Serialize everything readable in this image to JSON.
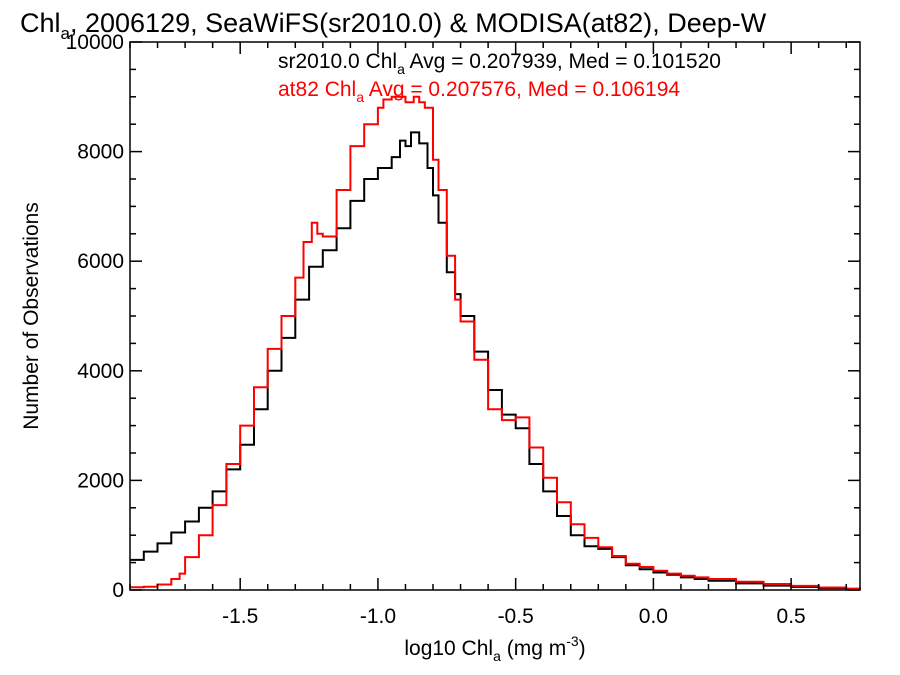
{
  "chart_data": {
    "type": "line",
    "title_pre": "Chl",
    "title_sub": "a",
    "title_post": ", 2006129, SeaWiFS(sr2010.0) & MODISA(at82), Deep-W",
    "xlabel_pre": "log10 Chl",
    "xlabel_sub": "a",
    "xlabel_post": " (mg m",
    "xlabel_sup": "-3",
    "xlabel_end": ")",
    "ylabel": "Number of Observations",
    "xlim": [
      -1.9,
      0.75
    ],
    "ylim": [
      0,
      10000
    ],
    "xticks": [
      -1.5,
      -1.0,
      -0.5,
      0.0,
      0.5
    ],
    "xtick_labels": [
      "-1.5",
      "-1.0",
      "-0.5",
      "0.0",
      "0.5"
    ],
    "yticks": [
      0,
      2000,
      4000,
      6000,
      8000,
      10000
    ],
    "ytick_labels": [
      "0",
      "2000",
      "4000",
      "6000",
      "8000",
      "10000"
    ],
    "annotations": [
      {
        "pre": "sr2010.0 Chl",
        "sub": "a",
        "post": " Avg = 0.207939, Med = 0.101520",
        "color": "#000000"
      },
      {
        "pre": "at82 Chl",
        "sub": "a",
        "post": " Avg = 0.207576, Med = 0.106194",
        "color": "#ff0000"
      }
    ],
    "series": [
      {
        "color": "#000000",
        "style": "step",
        "points": [
          [
            -1.9,
            550
          ],
          [
            -1.85,
            700
          ],
          [
            -1.8,
            850
          ],
          [
            -1.75,
            1050
          ],
          [
            -1.7,
            1250
          ],
          [
            -1.65,
            1500
          ],
          [
            -1.6,
            1800
          ],
          [
            -1.55,
            2200
          ],
          [
            -1.5,
            2650
          ],
          [
            -1.45,
            3300
          ],
          [
            -1.4,
            4000
          ],
          [
            -1.35,
            4600
          ],
          [
            -1.3,
            5300
          ],
          [
            -1.25,
            5900
          ],
          [
            -1.2,
            6200
          ],
          [
            -1.15,
            6600
          ],
          [
            -1.1,
            7100
          ],
          [
            -1.05,
            7500
          ],
          [
            -1.0,
            7700
          ],
          [
            -0.95,
            7900
          ],
          [
            -0.92,
            8200
          ],
          [
            -0.9,
            8100
          ],
          [
            -0.88,
            8350
          ],
          [
            -0.85,
            8150
          ],
          [
            -0.82,
            7700
          ],
          [
            -0.8,
            7200
          ],
          [
            -0.78,
            6700
          ],
          [
            -0.75,
            5800
          ],
          [
            -0.72,
            5400
          ],
          [
            -0.7,
            5000
          ],
          [
            -0.65,
            4350
          ],
          [
            -0.6,
            3650
          ],
          [
            -0.55,
            3200
          ],
          [
            -0.5,
            2950
          ],
          [
            -0.45,
            2300
          ],
          [
            -0.4,
            1800
          ],
          [
            -0.35,
            1350
          ],
          [
            -0.3,
            1000
          ],
          [
            -0.25,
            800
          ],
          [
            -0.2,
            750
          ],
          [
            -0.15,
            600
          ],
          [
            -0.1,
            450
          ],
          [
            -0.05,
            380
          ],
          [
            0.0,
            320
          ],
          [
            0.05,
            280
          ],
          [
            0.1,
            230
          ],
          [
            0.15,
            200
          ],
          [
            0.2,
            170
          ],
          [
            0.3,
            120
          ],
          [
            0.4,
            80
          ],
          [
            0.5,
            55
          ],
          [
            0.6,
            35
          ],
          [
            0.7,
            15
          ],
          [
            0.75,
            10
          ]
        ]
      },
      {
        "color": "#ff0000",
        "style": "step",
        "points": [
          [
            -1.9,
            50
          ],
          [
            -1.85,
            60
          ],
          [
            -1.8,
            100
          ],
          [
            -1.75,
            200
          ],
          [
            -1.72,
            300
          ],
          [
            -1.7,
            600
          ],
          [
            -1.65,
            1000
          ],
          [
            -1.6,
            1550
          ],
          [
            -1.55,
            2300
          ],
          [
            -1.5,
            3000
          ],
          [
            -1.45,
            3700
          ],
          [
            -1.4,
            4400
          ],
          [
            -1.35,
            5000
          ],
          [
            -1.3,
            5700
          ],
          [
            -1.27,
            6350
          ],
          [
            -1.24,
            6700
          ],
          [
            -1.22,
            6500
          ],
          [
            -1.2,
            6450
          ],
          [
            -1.15,
            7300
          ],
          [
            -1.1,
            8100
          ],
          [
            -1.05,
            8500
          ],
          [
            -1.0,
            8800
          ],
          [
            -0.98,
            8950
          ],
          [
            -0.95,
            9000
          ],
          [
            -0.9,
            8900
          ],
          [
            -0.87,
            9000
          ],
          [
            -0.85,
            8900
          ],
          [
            -0.83,
            8800
          ],
          [
            -0.8,
            7850
          ],
          [
            -0.78,
            7300
          ],
          [
            -0.75,
            6100
          ],
          [
            -0.72,
            5300
          ],
          [
            -0.7,
            4900
          ],
          [
            -0.65,
            4200
          ],
          [
            -0.6,
            3300
          ],
          [
            -0.55,
            3100
          ],
          [
            -0.5,
            3150
          ],
          [
            -0.45,
            2600
          ],
          [
            -0.4,
            2050
          ],
          [
            -0.35,
            1600
          ],
          [
            -0.3,
            1200
          ],
          [
            -0.25,
            950
          ],
          [
            -0.2,
            780
          ],
          [
            -0.15,
            620
          ],
          [
            -0.1,
            480
          ],
          [
            -0.05,
            420
          ],
          [
            0.0,
            350
          ],
          [
            0.05,
            300
          ],
          [
            0.1,
            260
          ],
          [
            0.15,
            230
          ],
          [
            0.2,
            200
          ],
          [
            0.3,
            150
          ],
          [
            0.4,
            110
          ],
          [
            0.5,
            75
          ],
          [
            0.6,
            45
          ],
          [
            0.7,
            25
          ],
          [
            0.75,
            20
          ]
        ]
      }
    ]
  }
}
